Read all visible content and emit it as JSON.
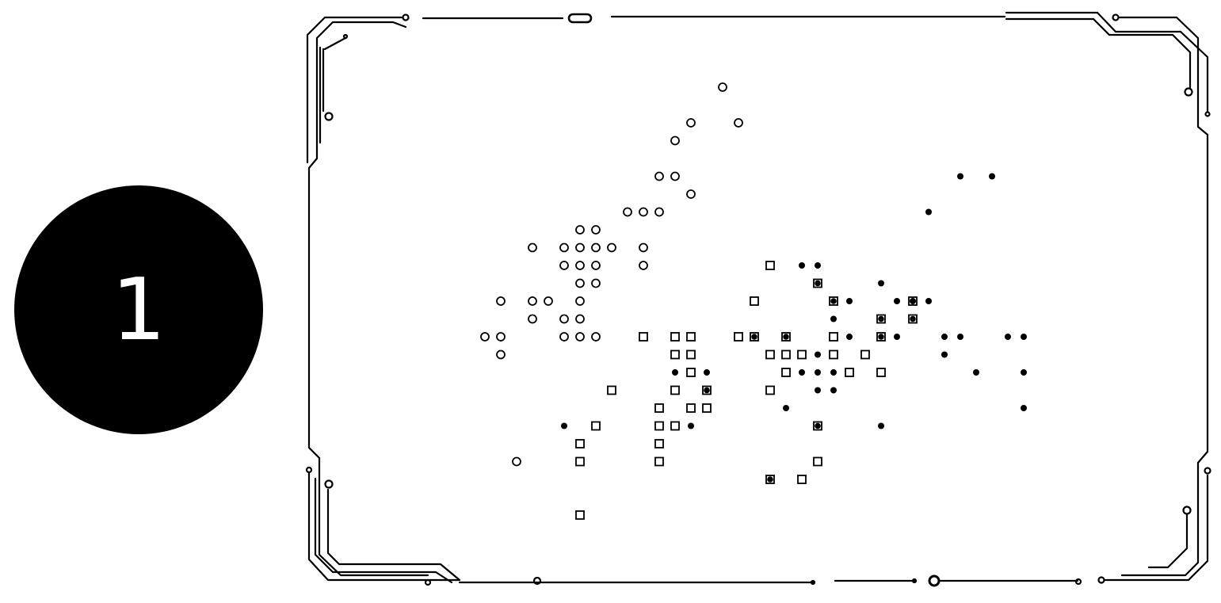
{
  "badge": {
    "label": "1"
  },
  "colors": {
    "ink": "#000000",
    "paper": "#ffffff"
  },
  "chart_data": {
    "type": "scatter",
    "title": "",
    "xlabel": "",
    "ylabel": "",
    "grid": false,
    "legend": "none",
    "series": [
      {
        "marker": "open-circle",
        "points": [
          [
            7,
            14
          ],
          [
            5,
            12
          ],
          [
            8,
            12
          ],
          [
            4,
            11
          ],
          [
            3,
            9
          ],
          [
            4,
            9
          ],
          [
            5,
            8
          ],
          [
            3,
            7
          ],
          [
            1,
            7
          ],
          [
            2,
            7
          ],
          [
            -2,
            6
          ],
          [
            -1,
            6
          ],
          [
            -5,
            5
          ],
          [
            -3,
            5
          ],
          [
            -2,
            5
          ],
          [
            -1,
            5
          ],
          [
            0,
            5
          ],
          [
            2,
            5
          ],
          [
            -3,
            4
          ],
          [
            -2,
            4
          ],
          [
            -1,
            4
          ],
          [
            2,
            4
          ],
          [
            -2,
            3
          ],
          [
            -1,
            3
          ],
          [
            -7,
            2
          ],
          [
            -5,
            2
          ],
          [
            -4,
            2
          ],
          [
            -2,
            2
          ],
          [
            -5,
            1
          ],
          [
            -3,
            1
          ],
          [
            -2,
            1
          ],
          [
            -8,
            0
          ],
          [
            -7,
            0
          ],
          [
            -3,
            0
          ],
          [
            -2,
            0
          ],
          [
            -1,
            0
          ],
          [
            -7,
            -1
          ],
          [
            -6,
            -7
          ]
        ]
      },
      {
        "marker": "open-square",
        "points": [
          [
            10,
            4
          ],
          [
            9,
            2
          ],
          [
            19,
            2
          ],
          [
            2,
            0
          ],
          [
            4,
            0
          ],
          [
            5,
            0
          ],
          [
            8,
            0
          ],
          [
            14,
            0
          ],
          [
            4,
            -1
          ],
          [
            5,
            -1
          ],
          [
            10,
            -1
          ],
          [
            11,
            -1
          ],
          [
            12,
            -1
          ],
          [
            14,
            -1
          ],
          [
            16,
            -1
          ],
          [
            5,
            -2
          ],
          [
            11,
            -2
          ],
          [
            15,
            -2
          ],
          [
            17,
            -2
          ],
          [
            0,
            -3
          ],
          [
            4,
            -3
          ],
          [
            10,
            -3
          ],
          [
            3,
            -4
          ],
          [
            5,
            -4
          ],
          [
            6,
            -4
          ],
          [
            -1,
            -5
          ],
          [
            3,
            -5
          ],
          [
            4,
            -5
          ],
          [
            -2,
            -6
          ],
          [
            3,
            -6
          ],
          [
            -2,
            -7
          ],
          [
            3,
            -7
          ],
          [
            13,
            -7
          ],
          [
            12,
            -8
          ],
          [
            -2,
            -10
          ]
        ]
      },
      {
        "marker": "filled-circle",
        "points": [
          [
            22,
            9
          ],
          [
            24,
            9
          ],
          [
            20,
            7
          ],
          [
            12,
            4
          ],
          [
            13,
            4
          ],
          [
            17,
            3
          ],
          [
            15,
            2
          ],
          [
            18,
            2
          ],
          [
            19,
            2
          ],
          [
            20,
            2
          ],
          [
            14,
            1
          ],
          [
            11,
            0
          ],
          [
            15,
            0
          ],
          [
            18,
            0
          ],
          [
            21,
            0
          ],
          [
            22,
            0
          ],
          [
            25,
            0
          ],
          [
            26,
            0
          ],
          [
            13,
            -1
          ],
          [
            21,
            -1
          ],
          [
            4,
            -2
          ],
          [
            6,
            -2
          ],
          [
            12,
            -2
          ],
          [
            13,
            -2
          ],
          [
            14,
            -2
          ],
          [
            23,
            -2
          ],
          [
            26,
            -2
          ],
          [
            13,
            -3
          ],
          [
            14,
            -3
          ],
          [
            11,
            -4
          ],
          [
            26,
            -4
          ],
          [
            -3,
            -5
          ],
          [
            5,
            -5
          ],
          [
            17,
            -5
          ]
        ]
      },
      {
        "marker": "filled-square",
        "points": [
          [
            13,
            3
          ],
          [
            14,
            2
          ],
          [
            17,
            1
          ],
          [
            19,
            1
          ],
          [
            9,
            0
          ],
          [
            11,
            0
          ],
          [
            17,
            0
          ],
          [
            6,
            -3
          ],
          [
            13,
            -5
          ],
          [
            10,
            -8
          ]
        ]
      }
    ]
  }
}
